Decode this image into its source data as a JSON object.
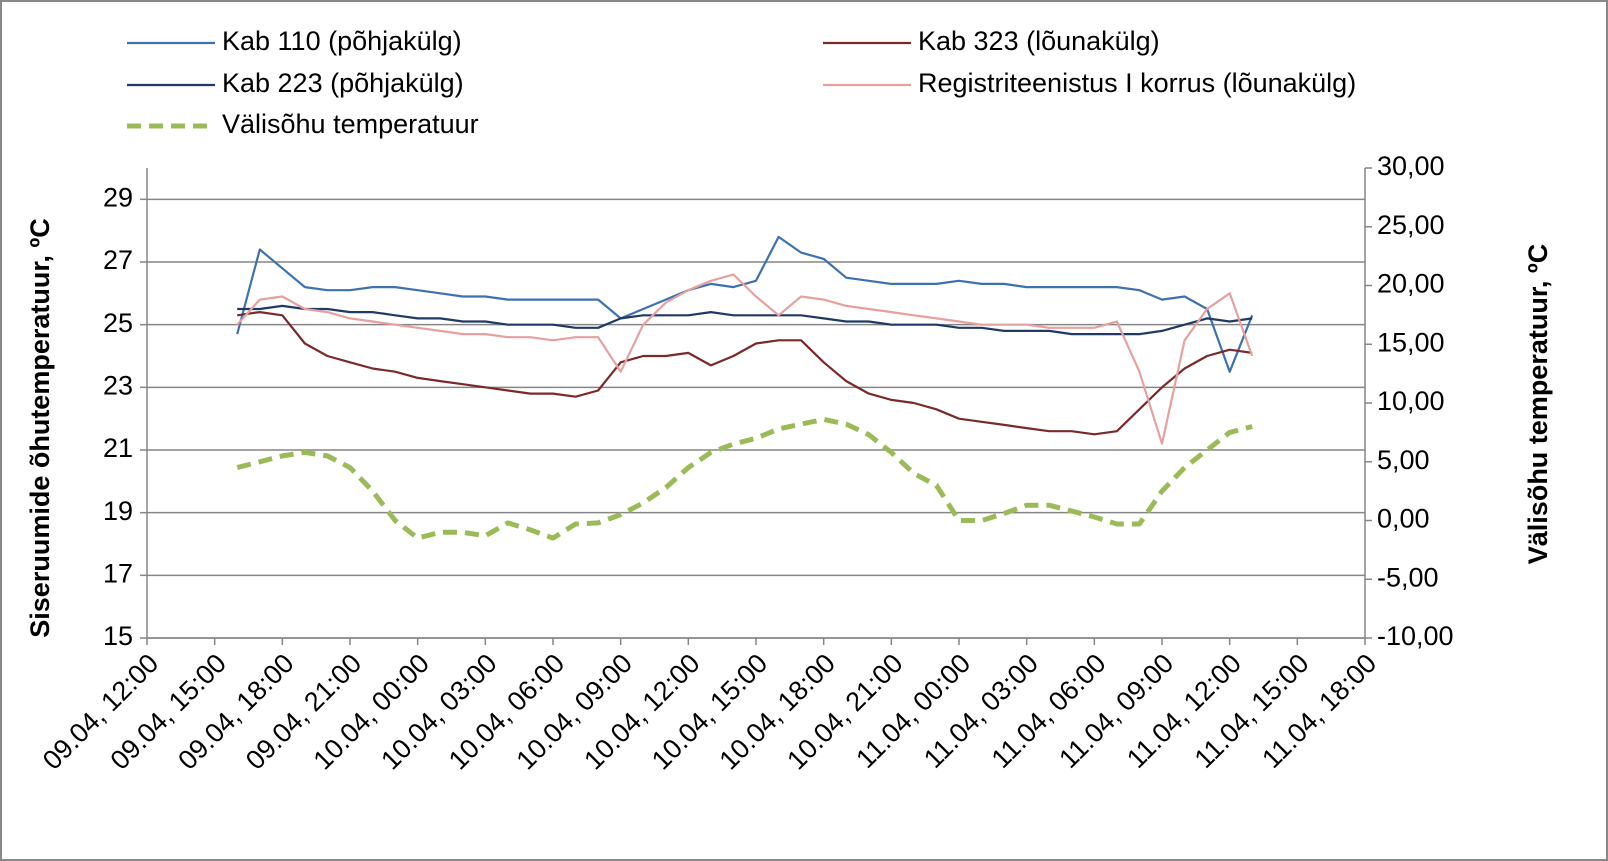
{
  "chart_data": {
    "type": "line",
    "ylabel": "Siseruumide õhutemperatuur, ºC",
    "y2label": "Välisõhu temperatuur, ºC",
    "x": [
      "09.04, 16:00",
      "09.04, 17:00",
      "09.04, 18:00",
      "09.04, 19:00",
      "09.04, 20:00",
      "09.04, 21:00",
      "09.04, 22:00",
      "09.04, 23:00",
      "10.04, 00:00",
      "10.04, 01:00",
      "10.04, 02:00",
      "10.04, 03:00",
      "10.04, 04:00",
      "10.04, 05:00",
      "10.04, 06:00",
      "10.04, 07:00",
      "10.04, 08:00",
      "10.04, 09:00",
      "10.04, 10:00",
      "10.04, 11:00",
      "10.04, 12:00",
      "10.04, 13:00",
      "10.04, 14:00",
      "10.04, 15:00",
      "10.04, 16:00",
      "10.04, 17:00",
      "10.04, 18:00",
      "10.04, 19:00",
      "10.04, 20:00",
      "10.04, 21:00",
      "10.04, 22:00",
      "10.04, 23:00",
      "11.04, 00:00",
      "11.04, 01:00",
      "11.04, 02:00",
      "11.04, 03:00",
      "11.04, 04:00",
      "11.04, 05:00",
      "11.04, 06:00",
      "11.04, 07:00",
      "11.04, 08:00",
      "11.04, 09:00",
      "11.04, 10:00",
      "11.04, 11:00",
      "11.04, 12:00",
      "11.04, 13:00"
    ],
    "series": [
      {
        "name": "Kab 110 (põhjakülg)",
        "color": "#3d71b0",
        "values": [
          24.7,
          27.4,
          26.8,
          26.2,
          26.1,
          26.1,
          26.2,
          26.2,
          26.1,
          26.0,
          25.9,
          25.9,
          25.8,
          25.8,
          25.8,
          25.8,
          25.8,
          25.2,
          25.5,
          25.8,
          26.1,
          26.3,
          26.2,
          26.4,
          27.8,
          27.3,
          27.1,
          26.5,
          26.4,
          26.3,
          26.3,
          26.3,
          26.4,
          26.3,
          26.3,
          26.2,
          26.2,
          26.2,
          26.2,
          26.2,
          26.1,
          25.8,
          25.9,
          25.5,
          23.5,
          25.3
        ]
      },
      {
        "name": "Kab 223 (põhjakülg)",
        "color": "#203a66",
        "values": [
          25.5,
          25.5,
          25.6,
          25.5,
          25.5,
          25.4,
          25.4,
          25.3,
          25.2,
          25.2,
          25.1,
          25.1,
          25.0,
          25.0,
          25.0,
          24.9,
          24.9,
          25.2,
          25.3,
          25.3,
          25.3,
          25.4,
          25.3,
          25.3,
          25.3,
          25.3,
          25.2,
          25.1,
          25.1,
          25.0,
          25.0,
          25.0,
          24.9,
          24.9,
          24.8,
          24.8,
          24.8,
          24.7,
          24.7,
          24.7,
          24.7,
          24.8,
          25.0,
          25.2,
          25.1,
          25.2
        ]
      },
      {
        "name": "Välisõhu temperatuur",
        "color": "#9bbb59",
        "axis": "y2",
        "style": "dashed",
        "values": [
          4.5,
          5.0,
          5.5,
          5.8,
          5.5,
          4.5,
          2.5,
          0.0,
          -1.5,
          -1.0,
          -1.0,
          -1.3,
          -0.2,
          -0.8,
          -1.5,
          -0.3,
          -0.2,
          0.5,
          1.5,
          2.8,
          4.5,
          5.8,
          6.5,
          7.0,
          7.8,
          8.2,
          8.6,
          8.2,
          7.3,
          5.8,
          4.0,
          3.0,
          0.0,
          0.0,
          0.6,
          1.3,
          1.3,
          0.8,
          0.3,
          -0.3,
          -0.3,
          2.5,
          4.5,
          6.0,
          7.5,
          8.0
        ]
      },
      {
        "name": "Kab 323 (lõunakülg)",
        "color": "#7a2a2a",
        "values": [
          25.3,
          25.4,
          25.3,
          24.4,
          24.0,
          23.8,
          23.6,
          23.5,
          23.3,
          23.2,
          23.1,
          23.0,
          22.9,
          22.8,
          22.8,
          22.7,
          22.9,
          23.8,
          24.0,
          24.0,
          24.1,
          23.7,
          24.0,
          24.4,
          24.5,
          24.5,
          23.8,
          23.2,
          22.8,
          22.6,
          22.5,
          22.3,
          22.0,
          21.9,
          21.8,
          21.7,
          21.6,
          21.6,
          21.5,
          21.6,
          22.3,
          23.0,
          23.6,
          24.0,
          24.2,
          24.1
        ]
      },
      {
        "name": "Registriteenistus I korrus (lõunakülg)",
        "color": "#e6a0a0",
        "values": [
          25.0,
          25.8,
          25.9,
          25.5,
          25.4,
          25.2,
          25.1,
          25.0,
          24.9,
          24.8,
          24.7,
          24.7,
          24.6,
          24.6,
          24.5,
          24.6,
          24.6,
          23.5,
          25.0,
          25.7,
          26.1,
          26.4,
          26.6,
          25.9,
          25.3,
          25.9,
          25.8,
          25.6,
          25.5,
          25.4,
          25.3,
          25.2,
          25.1,
          25.0,
          25.0,
          25.0,
          24.9,
          24.9,
          24.9,
          25.1,
          23.5,
          21.2,
          24.5,
          25.5,
          26.0,
          24.0
        ]
      }
    ],
    "xlim": [
      "09.04, 12:00",
      "11.04, 18:00"
    ],
    "xticks": [
      "09.04, 12:00",
      "09.04, 15:00",
      "09.04, 18:00",
      "09.04, 21:00",
      "10.04, 00:00",
      "10.04, 03:00",
      "10.04, 06:00",
      "10.04, 09:00",
      "10.04, 12:00",
      "10.04, 15:00",
      "10.04, 18:00",
      "10.04, 21:00",
      "11.04, 00:00",
      "11.04, 03:00",
      "11.04, 06:00",
      "11.04, 09:00",
      "11.04, 12:00",
      "11.04, 15:00",
      "11.04, 18:00"
    ],
    "ylim": [
      15,
      30
    ],
    "yticks": [
      15,
      17,
      19,
      21,
      23,
      25,
      27,
      29
    ],
    "y2lim": [
      -10,
      30
    ],
    "y2ticks": [
      {
        "value": -10,
        "label": "-10,00"
      },
      {
        "value": -5,
        "label": "-5,00"
      },
      {
        "value": 0,
        "label": "0,00"
      },
      {
        "value": 5,
        "label": "5,00"
      },
      {
        "value": 10,
        "label": "10,00"
      },
      {
        "value": 15,
        "label": "15,00"
      },
      {
        "value": 20,
        "label": "20,00"
      },
      {
        "value": 25,
        "label": "25,00"
      },
      {
        "value": 30,
        "label": "30,00"
      }
    ],
    "grid": true,
    "legend": "top"
  }
}
